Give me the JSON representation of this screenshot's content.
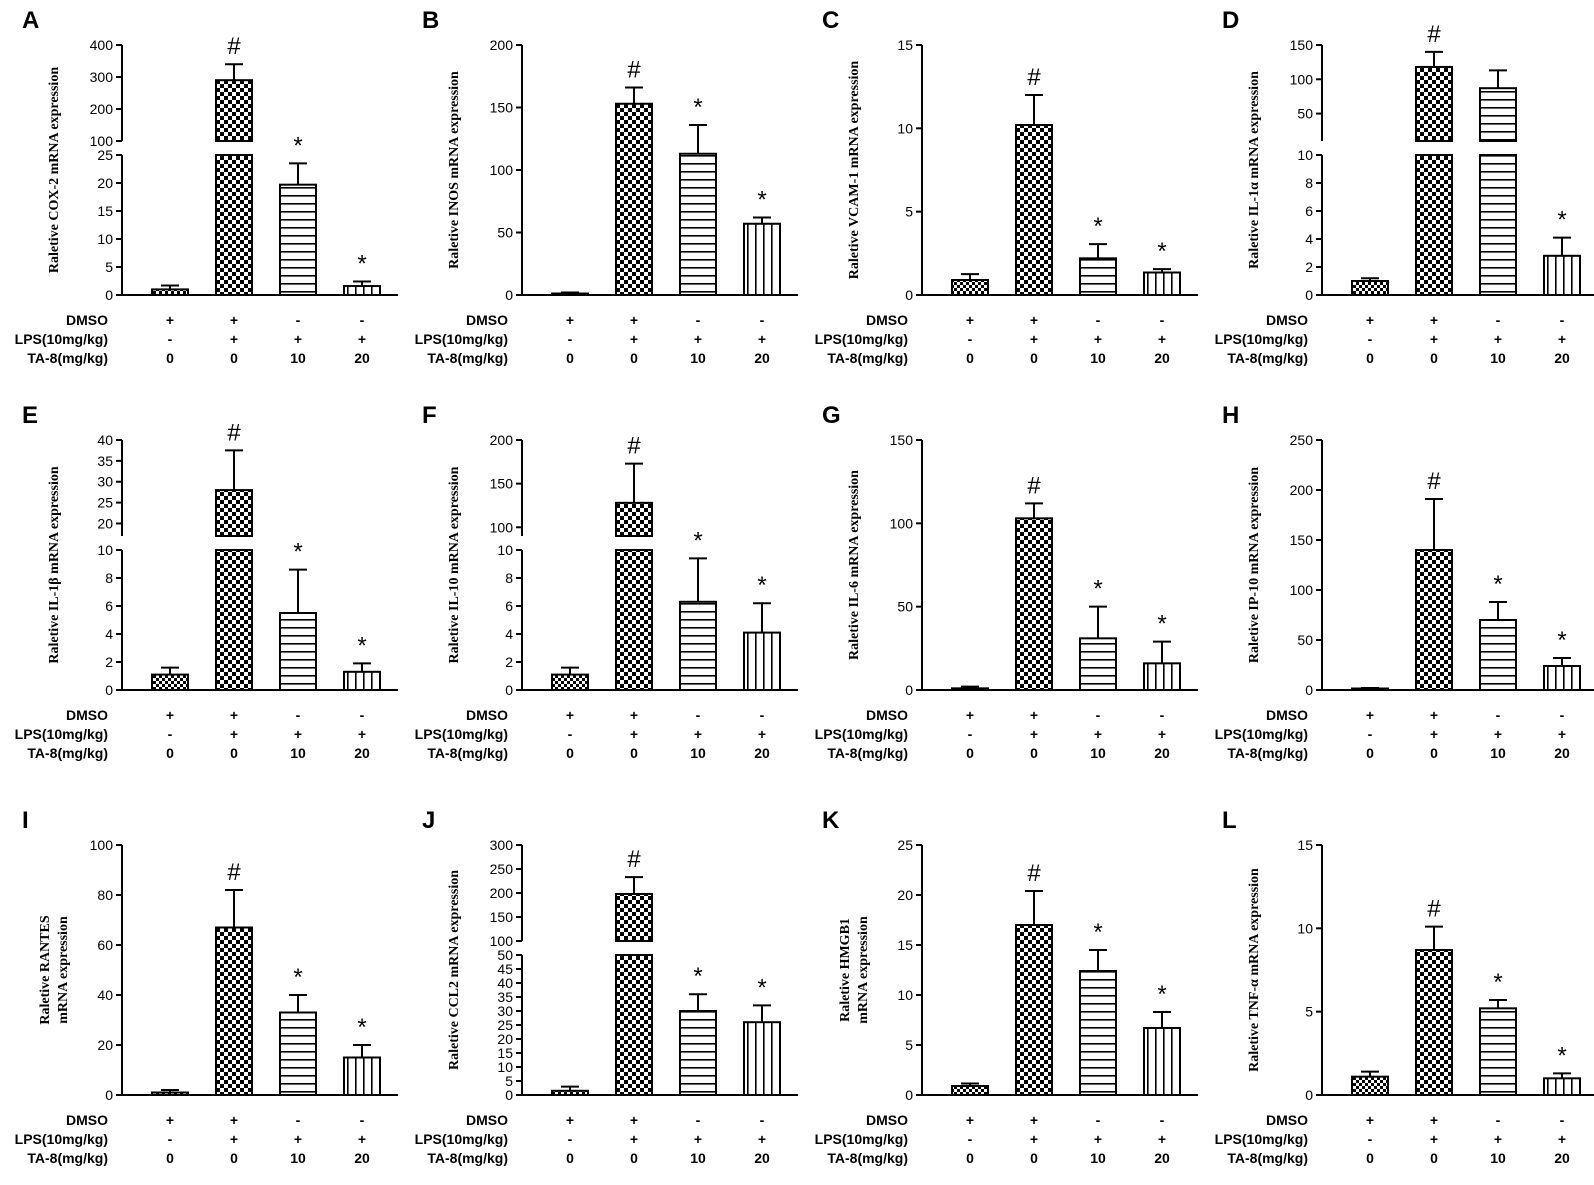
{
  "figure": {
    "colors": {
      "ink": "#000000",
      "background": "#ffffff"
    },
    "categories": [
      "DMSO",
      "LPS(10mg/kg)",
      "TA-8(mg/kg)"
    ],
    "row_labels": [
      "DMSO",
      "LPS(10mg/kg)",
      "TA-8(mg/kg)"
    ],
    "treatments": {
      "DMSO": [
        "+",
        "+",
        "-",
        "-"
      ],
      "LPS": [
        "-",
        "+",
        "+",
        "+"
      ],
      "TA8": [
        "0",
        "0",
        "10",
        "20"
      ]
    },
    "patterns": [
      "check-fine",
      "check",
      "hlines",
      "vlines"
    ]
  },
  "chart_data": [
    {
      "panel": "A",
      "type": "bar",
      "ylabel": "Raletive COX-2  mRNA expression",
      "values": [
        1,
        290,
        19.7,
        1.6
      ],
      "errors": [
        0.7,
        50,
        3.8,
        0.8
      ],
      "sig": [
        "",
        "#",
        "*",
        "*"
      ],
      "axis": {
        "break": true,
        "lower": [
          0,
          25
        ],
        "lower_ticks": [
          0,
          5,
          10,
          15,
          20,
          25
        ],
        "upper": [
          100,
          400
        ],
        "upper_ticks": [
          100,
          200,
          300,
          400
        ]
      }
    },
    {
      "panel": "B",
      "type": "bar",
      "ylabel": "Raletive INOS  mRNA expression",
      "values": [
        1,
        153,
        113,
        57
      ],
      "errors": [
        1,
        13,
        23,
        5
      ],
      "sig": [
        "",
        "#",
        "*",
        "*"
      ],
      "axis": {
        "break": false,
        "range": [
          0,
          200
        ],
        "ticks": [
          0,
          50,
          100,
          150,
          200
        ]
      }
    },
    {
      "panel": "C",
      "type": "bar",
      "ylabel": "Raletive VCAM-1  mRNA expression",
      "values": [
        0.9,
        10.2,
        2.2,
        1.35
      ],
      "errors": [
        0.35,
        1.8,
        0.85,
        0.2
      ],
      "sig": [
        "",
        "#",
        "*",
        "*"
      ],
      "axis": {
        "break": false,
        "range": [
          0,
          15
        ],
        "ticks": [
          0,
          5,
          10,
          15
        ]
      }
    },
    {
      "panel": "D",
      "type": "bar",
      "ylabel": "Raletive IL-1α  mRNA expression",
      "values": [
        1,
        118,
        87,
        2.8
      ],
      "errors": [
        0.2,
        22,
        26,
        1.3
      ],
      "sig": [
        "",
        "#",
        "",
        "*"
      ],
      "axis": {
        "break": true,
        "lower": [
          0,
          10
        ],
        "lower_ticks": [
          0,
          2,
          4,
          6,
          8,
          10
        ],
        "upper": [
          10,
          150
        ],
        "upper_ticks": [
          50,
          100,
          150
        ]
      }
    },
    {
      "panel": "E",
      "type": "bar",
      "ylabel": "Raletive IL-1β  mRNA expression",
      "values": [
        1.1,
        28,
        5.5,
        1.3
      ],
      "errors": [
        0.5,
        9.5,
        3.1,
        0.6
      ],
      "sig": [
        "",
        "#",
        "*",
        "*"
      ],
      "axis": {
        "break": true,
        "lower": [
          0,
          10
        ],
        "lower_ticks": [
          0,
          2,
          4,
          6,
          8,
          10
        ],
        "upper": [
          17,
          40
        ],
        "upper_ticks": [
          20,
          25,
          30,
          35,
          40
        ]
      }
    },
    {
      "panel": "F",
      "type": "bar",
      "ylabel": "Raletive IL-10  mRNA expression",
      "values": [
        1.1,
        128,
        6.3,
        4.1
      ],
      "errors": [
        0.5,
        45,
        3.1,
        2.1
      ],
      "sig": [
        "",
        "#",
        "*",
        "*"
      ],
      "axis": {
        "break": true,
        "lower": [
          0,
          10
        ],
        "lower_ticks": [
          0,
          2,
          4,
          6,
          8,
          10
        ],
        "upper": [
          90,
          200
        ],
        "upper_ticks": [
          100,
          150,
          200
        ]
      }
    },
    {
      "panel": "G",
      "type": "bar",
      "ylabel": "Raletive IL-6  mRNA expression",
      "values": [
        1,
        103,
        31,
        16
      ],
      "errors": [
        1,
        9,
        19,
        13
      ],
      "sig": [
        "",
        "#",
        "*",
        "*"
      ],
      "axis": {
        "break": false,
        "range": [
          0,
          150
        ],
        "ticks": [
          0,
          50,
          100,
          150
        ]
      }
    },
    {
      "panel": "H",
      "type": "bar",
      "ylabel": "Raletive IP-10  mRNA expression",
      "values": [
        1,
        140,
        70,
        24
      ],
      "errors": [
        1,
        51,
        18,
        8
      ],
      "sig": [
        "",
        "#",
        "*",
        "*"
      ],
      "axis": {
        "break": false,
        "range": [
          0,
          250
        ],
        "ticks": [
          0,
          50,
          100,
          150,
          200,
          250
        ]
      }
    },
    {
      "panel": "I",
      "type": "bar",
      "ylabel": "Raletive RANTES mRNA expression",
      "ylabel_lines": [
        "Raletive RANTES",
        "mRNA expression"
      ],
      "values": [
        1,
        67,
        33,
        15
      ],
      "errors": [
        1,
        15,
        7,
        5
      ],
      "sig": [
        "",
        "#",
        "*",
        "*"
      ],
      "axis": {
        "break": false,
        "range": [
          0,
          100
        ],
        "ticks": [
          0,
          20,
          40,
          60,
          80,
          100
        ]
      }
    },
    {
      "panel": "J",
      "type": "bar",
      "ylabel": "Raletive CCL2  mRNA expression",
      "values": [
        1.5,
        198,
        30,
        26
      ],
      "errors": [
        1.5,
        35,
        6,
        6
      ],
      "sig": [
        "",
        "#",
        "*",
        "*"
      ],
      "axis": {
        "break": true,
        "lower": [
          0,
          50
        ],
        "lower_ticks": [
          0,
          5,
          10,
          15,
          20,
          25,
          30,
          35,
          40,
          45,
          50
        ],
        "upper": [
          100,
          300
        ],
        "upper_ticks": [
          100,
          150,
          200,
          250,
          300
        ]
      }
    },
    {
      "panel": "K",
      "type": "bar",
      "ylabel": "Raletive HMGB1 mRNA expression",
      "ylabel_lines": [
        "Raletive HMGB1",
        "mRNA expression"
      ],
      "values": [
        0.9,
        17,
        12.4,
        6.7
      ],
      "errors": [
        0.25,
        3.4,
        2.1,
        1.6
      ],
      "sig": [
        "",
        "#",
        "*",
        "*"
      ],
      "axis": {
        "break": false,
        "range": [
          0,
          25
        ],
        "ticks": [
          0,
          5,
          10,
          15,
          20,
          25
        ]
      }
    },
    {
      "panel": "L",
      "type": "bar",
      "ylabel": "Raletive TNF-α  mRNA expression",
      "values": [
        1.1,
        8.7,
        5.2,
        1
      ],
      "errors": [
        0.3,
        1.4,
        0.5,
        0.3
      ],
      "sig": [
        "",
        "#",
        "*",
        "*"
      ],
      "axis": {
        "break": false,
        "range": [
          0,
          15
        ],
        "ticks": [
          0,
          5,
          10,
          15
        ]
      }
    }
  ]
}
